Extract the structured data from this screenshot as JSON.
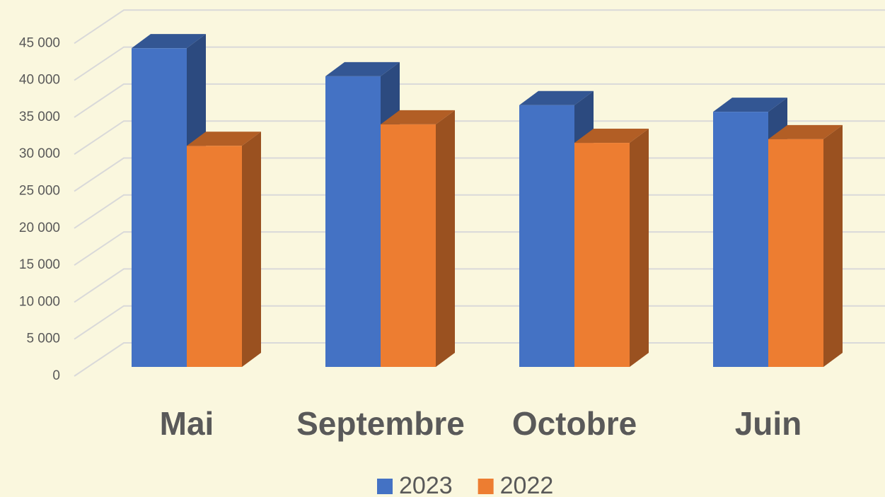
{
  "chart_data": {
    "type": "bar3d",
    "categories": [
      "Mai",
      "Septembre",
      "Octobre",
      "Juin"
    ],
    "series": [
      {
        "name": "2023",
        "color": "#4472c4",
        "values": [
          43100,
          39300,
          35400,
          34500
        ]
      },
      {
        "name": "2022",
        "color": "#ed7d31",
        "values": [
          29900,
          32800,
          30300,
          30800
        ]
      }
    ],
    "ylim": [
      0,
      45000
    ],
    "yticks": [
      0,
      {
        "value": 5000,
        "label": "5 000"
      },
      {
        "value": 10000,
        "label": "10 000"
      },
      {
        "value": 15000,
        "label": "15 000"
      },
      {
        "value": 20000,
        "label": "20 000"
      },
      {
        "value": 25000,
        "label": "25 000"
      },
      {
        "value": 30000,
        "label": "30 000"
      },
      {
        "value": 35000,
        "label": "35 000"
      },
      {
        "value": 40000,
        "label": "40 000"
      },
      {
        "value": 45000,
        "label": "45 000"
      }
    ],
    "grid": true
  }
}
